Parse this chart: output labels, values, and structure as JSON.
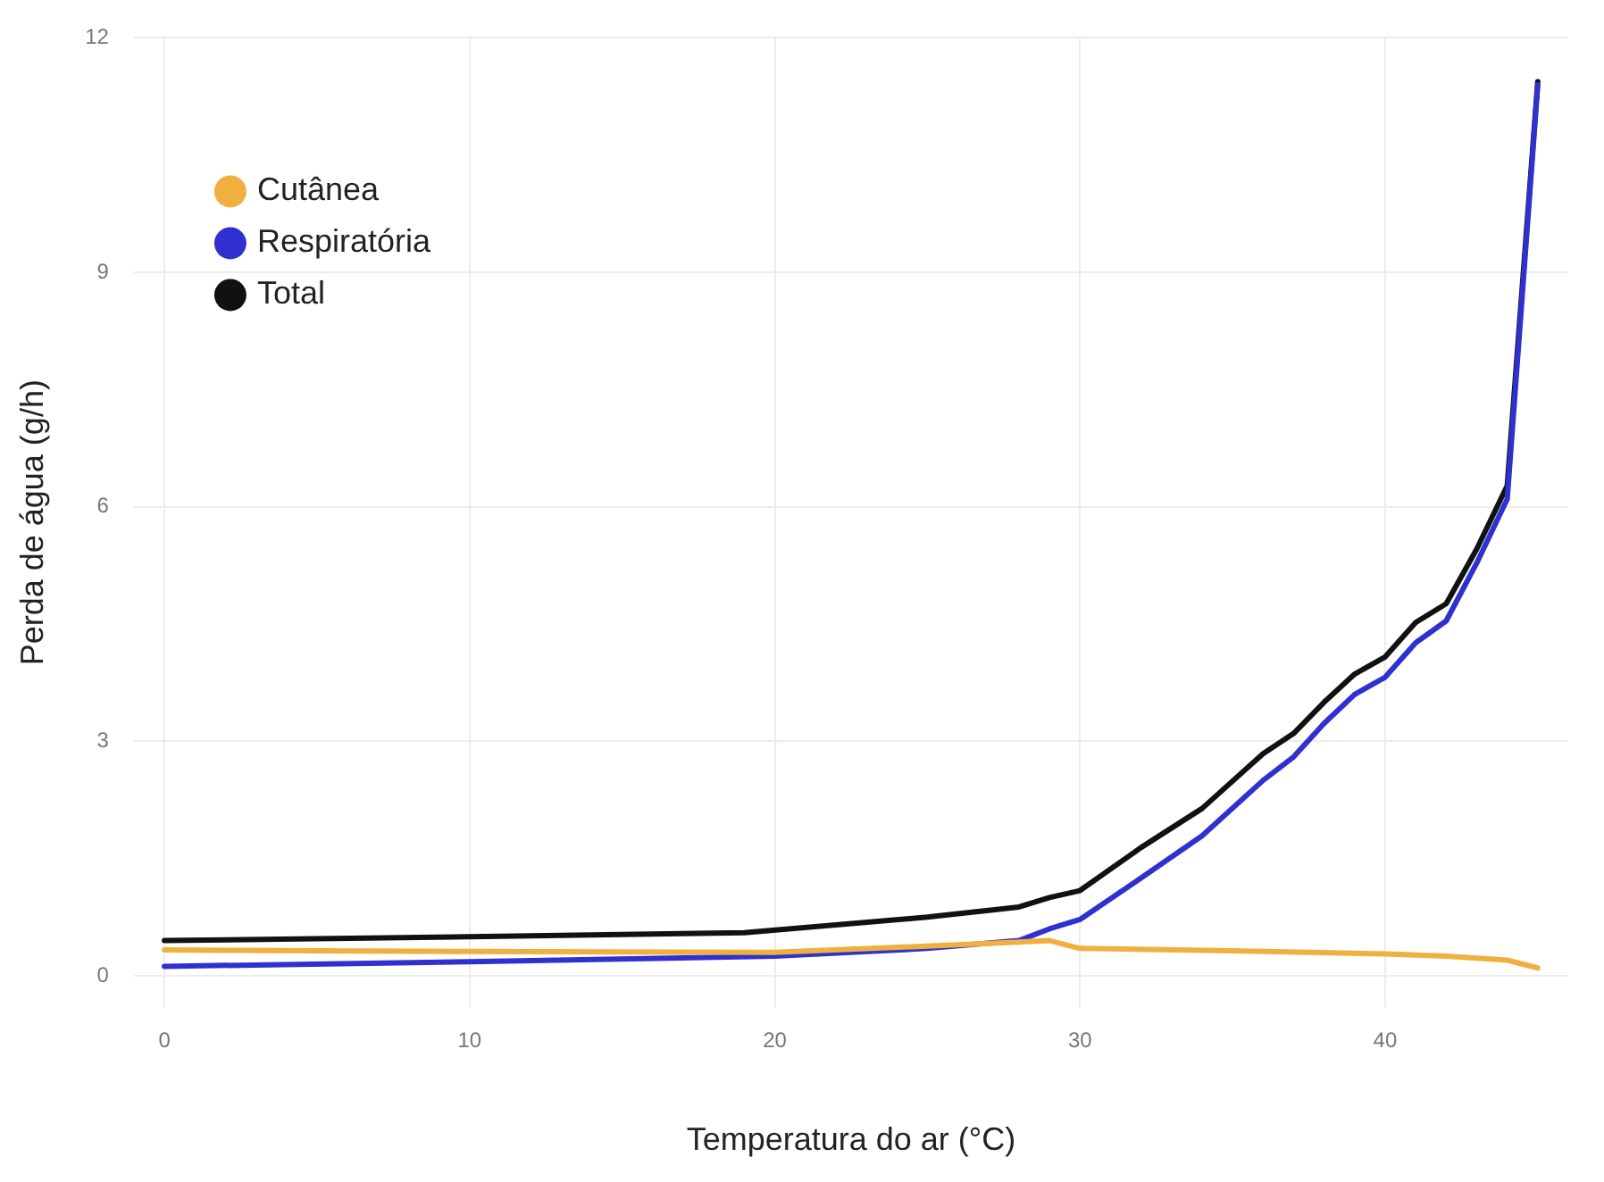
{
  "chart_data": {
    "type": "line",
    "xlabel": "Temperatura do ar (°C)",
    "ylabel": "Perda de água (g/h)",
    "xlim": [
      -1,
      46
    ],
    "xticks": [
      0,
      10,
      20,
      30,
      40
    ],
    "ylim": [
      -0.4,
      12
    ],
    "yticks": [
      0,
      3,
      6,
      9,
      12
    ],
    "grid": true,
    "legend": "top left",
    "marker": "none",
    "line_style": "solid",
    "series": [
      {
        "name": "Cutânea",
        "color": "#f0b040",
        "x": [
          0,
          10,
          20,
          25,
          28,
          29,
          30,
          35,
          40,
          42,
          44,
          45
        ],
        "values": [
          0.33,
          0.31,
          0.3,
          0.38,
          0.43,
          0.45,
          0.35,
          0.32,
          0.28,
          0.25,
          0.2,
          0.1
        ]
      },
      {
        "name": "Respiratória",
        "color": "#3030d0",
        "x": [
          0,
          10,
          20,
          25,
          28,
          29,
          30,
          32,
          34,
          36,
          37,
          38,
          39,
          40,
          41,
          42,
          43,
          44,
          45
        ],
        "values": [
          0.12,
          0.18,
          0.25,
          0.35,
          0.45,
          0.6,
          0.72,
          1.25,
          1.79,
          2.5,
          2.8,
          3.23,
          3.6,
          3.82,
          4.26,
          4.54,
          5.28,
          6.1,
          11.4
        ]
      },
      {
        "name": "Total",
        "color": "#111111",
        "x": [
          0,
          10,
          19,
          22,
          25,
          28,
          29,
          30,
          32,
          34,
          36,
          37,
          38,
          39,
          40,
          41,
          42,
          43,
          44,
          45
        ],
        "values": [
          0.45,
          0.5,
          0.55,
          0.65,
          0.75,
          0.88,
          1.0,
          1.09,
          1.64,
          2.14,
          2.84,
          3.1,
          3.5,
          3.86,
          4.08,
          4.52,
          4.76,
          5.46,
          6.27,
          11.44
        ]
      }
    ]
  }
}
